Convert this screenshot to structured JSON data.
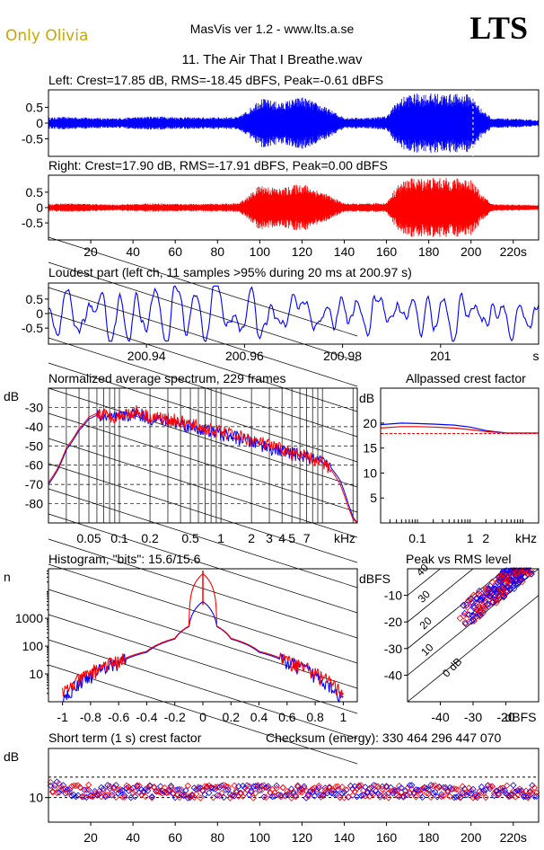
{
  "header": {
    "left_text": "Only Olivia",
    "center_text": "MasVis ver 1.2 - www.lts.a.se",
    "brand": "LTS",
    "file_title": "11. The Air That I Breathe.wav"
  },
  "colors": {
    "left": "#0000ff",
    "right": "#ff0000",
    "bg": "#ffffff",
    "grid": "#000000"
  },
  "chart_data": [
    {
      "id": "left-waveform",
      "type": "line",
      "title": "Left: Crest=17.85 dB, RMS=-18.45 dBFS, Peak=-0.61 dBFS",
      "ylim": [
        -1,
        1
      ],
      "yticks": [
        0.5,
        0,
        -0.5
      ],
      "ytick_labels": [
        "0.5",
        "0",
        "-0.5"
      ],
      "xlim": [
        0,
        232
      ],
      "duration_s": 232,
      "color": "#0000ff",
      "envelope": {
        "times": [
          0,
          10,
          20,
          30,
          40,
          50,
          60,
          70,
          80,
          90,
          95,
          100,
          110,
          120,
          130,
          140,
          150,
          160,
          165,
          170,
          180,
          190,
          200,
          205,
          210,
          220,
          230
        ],
        "amps": [
          0.18,
          0.2,
          0.18,
          0.15,
          0.19,
          0.22,
          0.2,
          0.18,
          0.19,
          0.2,
          0.45,
          0.8,
          0.65,
          0.85,
          0.55,
          0.18,
          0.17,
          0.22,
          0.7,
          0.92,
          0.95,
          0.93,
          0.92,
          0.45,
          0.16,
          0.14,
          0.1
        ]
      }
    },
    {
      "id": "right-waveform",
      "type": "line",
      "title": "Right: Crest=17.90 dB, RMS=-17.91 dBFS, Peak=0.00 dBFS",
      "ylim": [
        -1,
        1
      ],
      "yticks": [
        0.5,
        0,
        -0.5
      ],
      "ytick_labels": [
        "0.5",
        "0",
        "-0.5"
      ],
      "xlim": [
        0,
        232
      ],
      "xticks": [
        20,
        40,
        60,
        80,
        100,
        120,
        140,
        160,
        180,
        200,
        220
      ],
      "xtick_labels": [
        "20",
        "40",
        "60",
        "80",
        "100",
        "120",
        "140",
        "160",
        "180",
        "200",
        "220s"
      ],
      "color": "#ff0000",
      "envelope": {
        "times": [
          0,
          10,
          20,
          30,
          40,
          50,
          60,
          70,
          80,
          90,
          95,
          100,
          110,
          120,
          130,
          140,
          150,
          160,
          165,
          170,
          180,
          190,
          200,
          205,
          210,
          220,
          230
        ],
        "amps": [
          0.12,
          0.14,
          0.12,
          0.1,
          0.12,
          0.14,
          0.13,
          0.12,
          0.13,
          0.14,
          0.4,
          0.75,
          0.62,
          0.8,
          0.5,
          0.14,
          0.13,
          0.16,
          0.72,
          0.95,
          0.98,
          0.96,
          0.95,
          0.42,
          0.12,
          0.1,
          0.08
        ]
      }
    },
    {
      "id": "loudest-part",
      "type": "line",
      "title": "Loudest part (left  ch, 11 samples >95% during 20 ms at 200.97 s)",
      "ylim": [
        -1,
        1
      ],
      "yticks": [
        0.5,
        0,
        -0.5
      ],
      "ytick_labels": [
        "0.5",
        "0",
        "-0.5"
      ],
      "xlim": [
        200.92,
        201.02
      ],
      "xticks": [
        200.94,
        200.96,
        200.98,
        201.0
      ],
      "xtick_labels": [
        "200.94",
        "200.96",
        "200.98",
        "201",
        "s"
      ],
      "color": "#0000ff"
    },
    {
      "id": "average-spectrum",
      "type": "line",
      "title": "Normalized average spectrum, 229 frames",
      "ylabel": "dB",
      "yticks": [
        -30,
        -40,
        -50,
        -60,
        -70,
        -80
      ],
      "ytick_labels": [
        "-30",
        "-40",
        "-50",
        "-60",
        "-70",
        "-80"
      ],
      "ylim": [
        -90,
        -20
      ],
      "xlim_hz": [
        20,
        22050
      ],
      "xscale": "log",
      "xtick_labels": [
        "0.05",
        "0.1",
        "0.2",
        "0.5",
        "1",
        "2",
        "3",
        "4",
        "5",
        "7",
        "kHz"
      ],
      "xtick_values_khz": [
        0.05,
        0.1,
        0.2,
        0.5,
        1,
        2,
        3,
        4,
        5,
        7
      ],
      "series": [
        {
          "color": "#0000ff",
          "freq_khz": [
            0.02,
            0.025,
            0.03,
            0.04,
            0.05,
            0.06,
            0.08,
            0.1,
            0.15,
            0.2,
            0.3,
            0.5,
            0.7,
            1,
            1.5,
            2,
            3,
            4,
            5,
            7,
            10,
            12,
            15,
            18,
            20,
            22
          ],
          "db": [
            -70,
            -62,
            -52,
            -42,
            -36,
            -34,
            -36,
            -35,
            -33,
            -36,
            -37,
            -40,
            -42,
            -44,
            -46,
            -48,
            -51,
            -53,
            -54,
            -56,
            -59,
            -61,
            -68,
            -80,
            -87,
            -90
          ]
        },
        {
          "color": "#ff0000",
          "freq_khz": [
            0.02,
            0.025,
            0.03,
            0.04,
            0.05,
            0.06,
            0.08,
            0.1,
            0.15,
            0.2,
            0.3,
            0.5,
            0.7,
            1,
            1.5,
            2,
            3,
            4,
            5,
            7,
            10,
            12,
            15,
            18,
            20,
            22
          ],
          "db": [
            -69,
            -61,
            -51,
            -41,
            -35,
            -33,
            -35,
            -34,
            -32,
            -35,
            -36,
            -39,
            -41,
            -43,
            -45,
            -47,
            -50,
            -52,
            -54,
            -56,
            -59,
            -62,
            -70,
            -82,
            -88,
            -90
          ]
        }
      ]
    },
    {
      "id": "allpassed-crest",
      "type": "line",
      "title": "Allpassed crest factor",
      "ylabel": "dB",
      "yticks": [
        20,
        15,
        10,
        5
      ],
      "ytick_labels": [
        "20",
        "15",
        "10",
        "5"
      ],
      "ylim": [
        0,
        27
      ],
      "xscale": "log",
      "xtick_labels": [
        "0.1",
        "1",
        "2",
        "kHz"
      ],
      "xtick_values_khz": [
        0.1,
        1,
        2
      ],
      "reference_dashed_db": 17.9,
      "series": [
        {
          "color": "#0000ff",
          "freq_khz": [
            0.02,
            0.05,
            0.1,
            0.2,
            0.5,
            1,
            2,
            5,
            10,
            20
          ],
          "db": [
            19.7,
            20.0,
            19.9,
            19.8,
            19.6,
            19.2,
            18.5,
            18.0,
            18.0,
            18.0
          ]
        },
        {
          "color": "#ff0000",
          "freq_khz": [
            0.02,
            0.05,
            0.1,
            0.2,
            0.5,
            1,
            2,
            5,
            10,
            20
          ],
          "db": [
            19.0,
            19.3,
            19.3,
            19.2,
            19.0,
            18.7,
            18.3,
            18.0,
            18.0,
            18.0
          ]
        }
      ]
    },
    {
      "id": "histogram",
      "type": "line",
      "title": "Histogram, \"bits\": 15.6/15.6",
      "ylabel": "n",
      "yscale": "log",
      "yticks": [
        10,
        100,
        1000
      ],
      "ytick_labels": [
        "10",
        "100",
        "1000"
      ],
      "ylim": [
        1,
        60000
      ],
      "xlim": [
        -1.1,
        1.1
      ],
      "xtick_labels": [
        "-1",
        "-0.8",
        "-0.6",
        "-0.4",
        "-0.2",
        "0",
        "0.2",
        "0.4",
        "0.6",
        "0.8",
        "1"
      ],
      "xtick_values": [
        -1,
        -0.8,
        -0.6,
        -0.4,
        -0.2,
        0,
        0.2,
        0.4,
        0.6,
        0.8,
        1
      ],
      "series": [
        {
          "color": "#0000ff",
          "x": [
            -1,
            -0.95,
            -0.9,
            -0.8,
            -0.6,
            -0.4,
            -0.2,
            -0.1,
            0,
            0.1,
            0.2,
            0.4,
            0.6,
            0.8,
            0.9,
            0.95,
            1
          ],
          "y": [
            1,
            2,
            4,
            8,
            25,
            60,
            180,
            500,
            4000,
            500,
            180,
            60,
            25,
            8,
            4,
            2,
            1
          ]
        },
        {
          "color": "#ff0000",
          "x": [
            -1,
            -0.95,
            -0.9,
            -0.8,
            -0.6,
            -0.4,
            -0.2,
            -0.1,
            0,
            0.1,
            0.2,
            0.4,
            0.6,
            0.8,
            0.9,
            0.95,
            1
          ],
          "y": [
            2,
            3,
            5,
            10,
            28,
            65,
            190,
            520,
            40000,
            520,
            190,
            65,
            28,
            10,
            5,
            3,
            2
          ]
        }
      ]
    },
    {
      "id": "peak-vs-rms",
      "type": "scatter",
      "title": "Peak vs RMS level",
      "ylabel": "dBFS",
      "xlabel": "dBFS",
      "xlim": [
        -50,
        -10
      ],
      "ylim": [
        -50,
        0
      ],
      "yticks": [
        -10,
        -20,
        -30,
        -40
      ],
      "ytick_labels": [
        "-10",
        "-20",
        "-30",
        "-40"
      ],
      "xticks": [
        -40,
        -30,
        -20
      ],
      "xtick_labels": [
        "-40",
        "-30",
        "-20",
        "dBFS"
      ],
      "crest_lines_db": [
        0,
        10,
        20,
        30,
        40
      ],
      "crest_line_labels": [
        "0 dB",
        "10",
        "20",
        "30",
        "40"
      ]
    },
    {
      "id": "short-term-crest",
      "type": "scatter",
      "title": "Short term (1 s) crest factor",
      "annotation": "Checksum (energy):   330 464 296 447 070",
      "ylabel": "dB",
      "ylim": [
        4,
        22
      ],
      "yticks": [
        10
      ],
      "ytick_labels": [
        "10"
      ],
      "dashed_y": [
        10,
        15
      ],
      "xlim": [
        0,
        232
      ],
      "xticks": [
        20,
        40,
        60,
        80,
        100,
        120,
        140,
        160,
        180,
        200,
        220
      ],
      "xtick_labels": [
        "20",
        "40",
        "60",
        "80",
        "100",
        "120",
        "140",
        "160",
        "180",
        "200",
        "220s"
      ]
    }
  ]
}
